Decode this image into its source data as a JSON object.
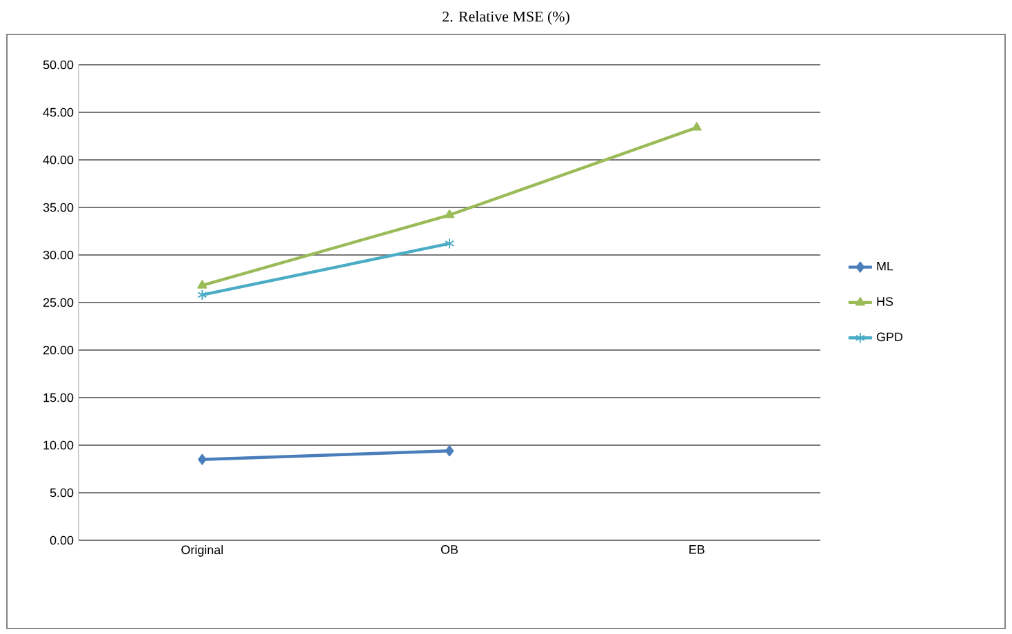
{
  "chart_data": {
    "type": "line",
    "title": "2. Relative MSE (%)",
    "categories": [
      "Original",
      "OB",
      "EB"
    ],
    "series": [
      {
        "name": "ML",
        "color": "#4a7ebb",
        "marker": "diamond",
        "values": [
          8.5,
          9.4,
          null
        ]
      },
      {
        "name": "HS",
        "color": "#9bbb59",
        "marker": "triangle",
        "values": [
          26.8,
          34.2,
          43.4
        ]
      },
      {
        "name": "GPD",
        "color": "#4bacc6",
        "marker": "cross",
        "values": [
          25.8,
          31.2,
          null
        ]
      }
    ],
    "ylim": [
      0,
      50
    ],
    "yticks": [
      {
        "value": 0,
        "label": "0.00"
      },
      {
        "value": 5,
        "label": "5.00"
      },
      {
        "value": 10,
        "label": "10.00"
      },
      {
        "value": 15,
        "label": "15.00"
      },
      {
        "value": 20,
        "label": "20.00"
      },
      {
        "value": 25,
        "label": "25.00"
      },
      {
        "value": 30,
        "label": "30.00"
      },
      {
        "value": 35,
        "label": "35.00"
      },
      {
        "value": 40,
        "label": "40.00"
      },
      {
        "value": 45,
        "label": "45.00"
      },
      {
        "value": 50,
        "label": "50.00"
      }
    ],
    "grid": "y",
    "legend": "right",
    "line_style": "solid"
  }
}
